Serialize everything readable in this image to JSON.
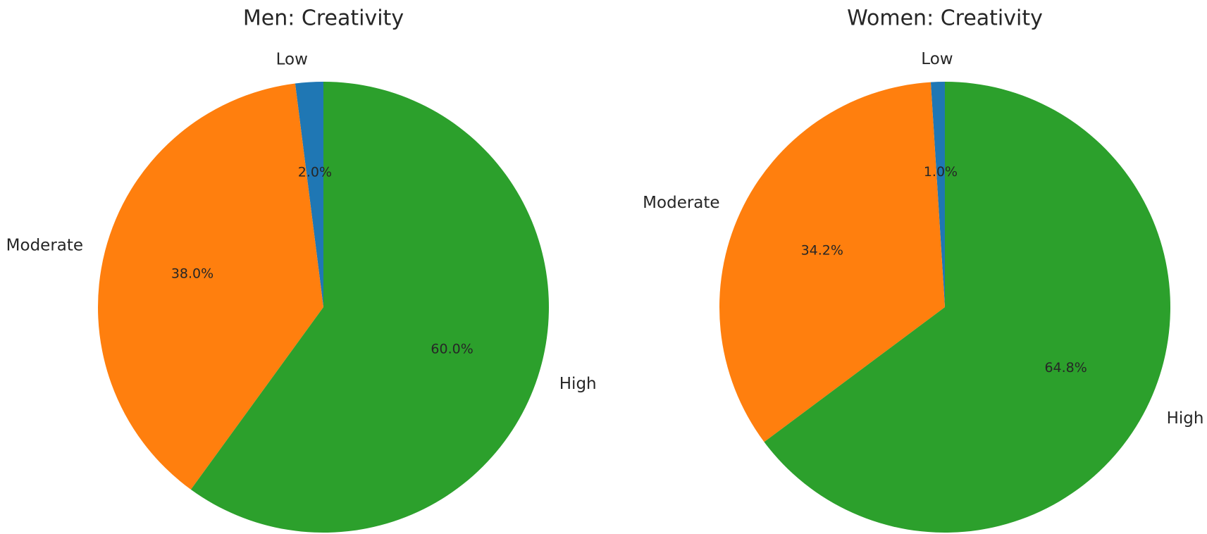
{
  "chart_data": [
    {
      "type": "pie",
      "title": "Men: Creativity",
      "categories": [
        "Low",
        "Moderate",
        "High"
      ],
      "values": [
        2.0,
        38.0,
        60.0
      ],
      "value_labels": [
        "2.0%",
        "38.0%",
        "60.0%"
      ],
      "colors": [
        "#1f77b4",
        "#ff7f0e",
        "#2ca02c"
      ],
      "start_angle_deg": 90,
      "direction": "counterclockwise",
      "legend": "none"
    },
    {
      "type": "pie",
      "title": "Women: Creativity",
      "categories": [
        "Low",
        "Moderate",
        "High"
      ],
      "values": [
        1.0,
        34.2,
        64.8
      ],
      "value_labels": [
        "1.0%",
        "34.2%",
        "64.8%"
      ],
      "colors": [
        "#1f77b4",
        "#ff7f0e",
        "#2ca02c"
      ],
      "start_angle_deg": 90,
      "direction": "counterclockwise",
      "legend": "none"
    }
  ]
}
